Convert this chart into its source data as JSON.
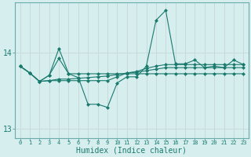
{
  "title": "",
  "xlabel": "Humidex (Indice chaleur)",
  "x": [
    0,
    1,
    2,
    3,
    4,
    5,
    6,
    7,
    8,
    9,
    10,
    11,
    12,
    13,
    14,
    15,
    16,
    17,
    18,
    19,
    20,
    21,
    22,
    23
  ],
  "line1": [
    13.82,
    13.73,
    13.62,
    13.7,
    14.05,
    13.72,
    13.67,
    13.32,
    13.32,
    13.28,
    13.6,
    13.68,
    13.68,
    13.82,
    14.42,
    14.55,
    13.85,
    13.85,
    13.9,
    13.8,
    13.82,
    13.8,
    13.9,
    13.84
  ],
  "line2": [
    13.82,
    13.73,
    13.62,
    13.7,
    13.92,
    13.72,
    13.72,
    13.72,
    13.72,
    13.72,
    13.72,
    13.72,
    13.72,
    13.72,
    13.72,
    13.72,
    13.72,
    13.72,
    13.72,
    13.72,
    13.72,
    13.72,
    13.72,
    13.72
  ],
  "line3": [
    13.82,
    13.73,
    13.62,
    13.63,
    13.63,
    13.63,
    13.63,
    13.63,
    13.63,
    13.63,
    13.68,
    13.73,
    13.75,
    13.79,
    13.82,
    13.84,
    13.84,
    13.84,
    13.84,
    13.84,
    13.84,
    13.84,
    13.84,
    13.84
  ],
  "line4": [
    13.82,
    13.73,
    13.62,
    13.63,
    13.65,
    13.65,
    13.66,
    13.67,
    13.68,
    13.69,
    13.71,
    13.73,
    13.74,
    13.76,
    13.78,
    13.8,
    13.8,
    13.8,
    13.8,
    13.8,
    13.8,
    13.8,
    13.8,
    13.8
  ],
  "ylim": [
    12.88,
    14.65
  ],
  "yticks": [
    13,
    14
  ],
  "bg_color": "#d6eeee",
  "grid_color": "#c8dada",
  "line_color": "#1a7a6e",
  "markersize": 2.5,
  "linewidth": 0.8
}
